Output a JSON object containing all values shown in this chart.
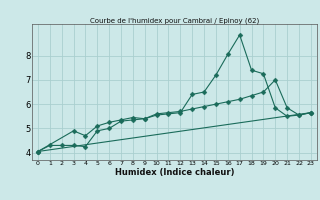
{
  "title": "Courbe de l'humidex pour Cambrai / Epinoy (62)",
  "xlabel": "Humidex (Indice chaleur)",
  "ylabel": "",
  "bg_color": "#cce8e8",
  "line_color": "#1a6b5a",
  "grid_color": "#aacfcf",
  "xlim": [
    -0.5,
    23.5
  ],
  "ylim": [
    3.7,
    9.3
  ],
  "yticks": [
    4,
    5,
    6,
    7,
    8
  ],
  "xticks": [
    0,
    1,
    2,
    3,
    4,
    5,
    6,
    7,
    8,
    9,
    10,
    11,
    12,
    13,
    14,
    15,
    16,
    17,
    18,
    19,
    20,
    21,
    22,
    23
  ],
  "line1_x": [
    0,
    1,
    2,
    3,
    4,
    5,
    6,
    7,
    8,
    9,
    10,
    11,
    12,
    13,
    14,
    15,
    16,
    17,
    18,
    19,
    20,
    21,
    22,
    23
  ],
  "line1_y": [
    4.05,
    4.3,
    4.3,
    4.3,
    4.25,
    4.9,
    5.0,
    5.3,
    5.35,
    5.4,
    5.55,
    5.6,
    5.65,
    6.4,
    6.5,
    7.2,
    8.05,
    8.85,
    7.4,
    7.25,
    5.85,
    5.5,
    5.55,
    5.65
  ],
  "line2_x": [
    0,
    3,
    4,
    5,
    6,
    7,
    8,
    9,
    10,
    11,
    12,
    13,
    14,
    15,
    16,
    17,
    18,
    19,
    20,
    21,
    22,
    23
  ],
  "line2_y": [
    4.05,
    4.9,
    4.7,
    5.1,
    5.25,
    5.35,
    5.45,
    5.4,
    5.6,
    5.65,
    5.7,
    5.8,
    5.9,
    6.0,
    6.1,
    6.2,
    6.35,
    6.5,
    7.0,
    5.85,
    5.55,
    5.65
  ],
  "line3_x": [
    0,
    23
  ],
  "line3_y": [
    4.05,
    5.65
  ]
}
